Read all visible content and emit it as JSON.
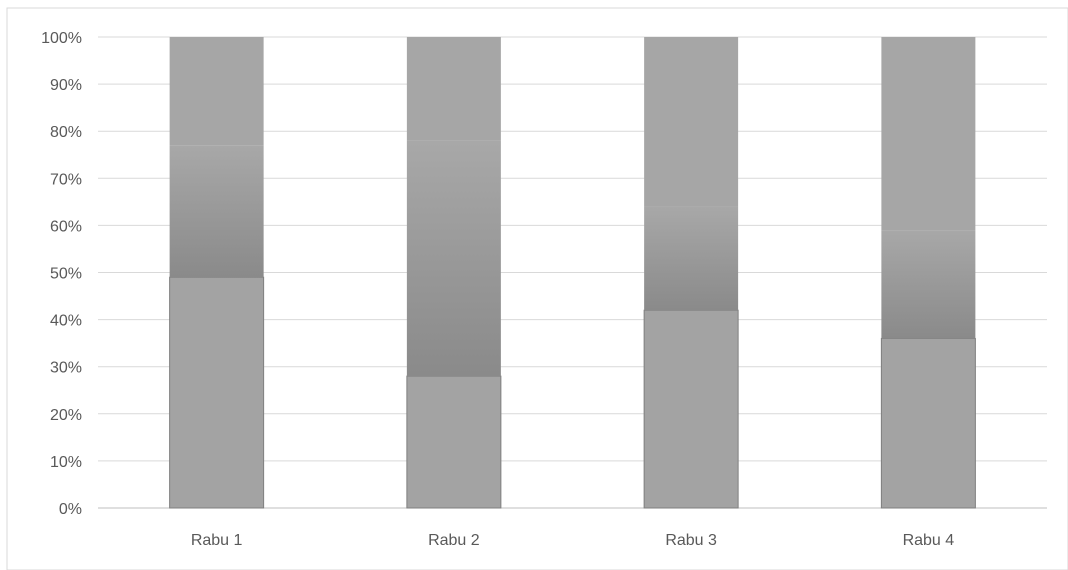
{
  "chart_data": {
    "type": "bar",
    "stacked": "percent",
    "categories": [
      "Rabu 1",
      "Rabu 2",
      "Rabu 3",
      "Rabu 4"
    ],
    "series": [
      {
        "values": [
          49,
          28,
          42,
          36
        ],
        "color": "#a3a3a3"
      },
      {
        "values": [
          28,
          50,
          22,
          23
        ],
        "color": "#9b9b9b"
      },
      {
        "values": [
          23,
          22,
          36,
          41
        ],
        "color": "#a6a6a6"
      }
    ],
    "ylim": [
      0,
      100
    ],
    "y_ticks": [
      "0%",
      "10%",
      "20%",
      "30%",
      "40%",
      "50%",
      "60%",
      "70%",
      "80%",
      "90%",
      "100%"
    ],
    "grid": true,
    "legend": "none",
    "title": "",
    "xlabel": "",
    "ylabel": ""
  }
}
